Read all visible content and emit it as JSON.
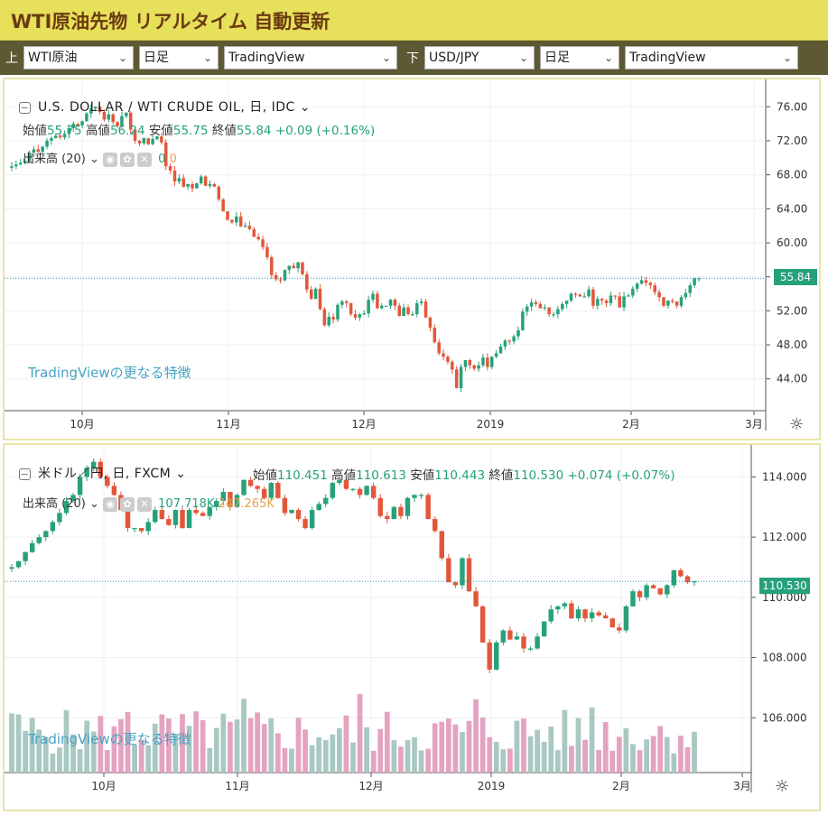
{
  "header": {
    "title": "WTI原油先物 リアルタイム 自動更新"
  },
  "toolbar": {
    "top_label": "上",
    "bottom_label": "下",
    "top_symbol": "WTI原油",
    "top_interval": "日足",
    "top_source": "TradingView",
    "bottom_symbol": "USD/JPY",
    "bottom_interval": "日足",
    "bottom_source": "TradingView"
  },
  "top_chart": {
    "symbol_title": "U.S. DOLLAR / WTI CRUDE OIL, 日, IDC",
    "ohlc": {
      "open_label": "始値",
      "open": "55.75",
      "high_label": "高値",
      "high": "56.24",
      "low_label": "安値",
      "low": "55.75",
      "close_label": "終値",
      "close": "55.84",
      "change": "+0.09 (+0.16%)"
    },
    "volume_label": "出来高 (20)",
    "volume_values": [
      "0",
      "0"
    ],
    "tv_link": "TradingViewの更なる特徴",
    "last_price": "55.84"
  },
  "bottom_chart": {
    "symbol_title": "米ドル／円, 日, FXCM",
    "ohlc": {
      "open_label": "始値",
      "open": "110.451",
      "high_label": "高値",
      "high": "110.613",
      "low_label": "安値",
      "low": "110.443",
      "close_label": "終値",
      "close": "110.530",
      "change": "+0.074 (+0.07%)"
    },
    "volume_label": "出来高 (20)",
    "volume_values": [
      "107.718K",
      "247.265K"
    ],
    "tv_link": "TradingViewの更なる特徴",
    "last_price": "110.530"
  },
  "chart_data": [
    {
      "type": "candlestick",
      "title": "U.S. DOLLAR / WTI CRUDE OIL, 日, IDC",
      "ylim": [
        41,
        79
      ],
      "yticks": [
        "76.00",
        "72.00",
        "68.00",
        "64.00",
        "60.00",
        "56.00",
        "52.00",
        "48.00",
        "44.00"
      ],
      "xticks": [
        "10月",
        "11月",
        "12月",
        "2019",
        "2月",
        "3月"
      ],
      "last": 55.84,
      "closes": [
        69.0,
        69.2,
        69.4,
        69.6,
        70.6,
        71.0,
        70.7,
        71.3,
        72.0,
        72.3,
        72.6,
        72.4,
        72.8,
        73.5,
        74.0,
        73.8,
        74.3,
        75.2,
        75.8,
        76.0,
        75.4,
        74.5,
        75.1,
        74.2,
        73.7,
        74.9,
        75.3,
        73.3,
        72.0,
        71.7,
        72.3,
        71.6,
        72.2,
        72.5,
        71.8,
        69.0,
        68.5,
        67.2,
        67.6,
        66.6,
        66.9,
        66.4,
        67.0,
        67.8,
        66.7,
        66.9,
        66.6,
        65.1,
        63.7,
        62.7,
        62.4,
        63.1,
        61.9,
        62.0,
        61.6,
        60.7,
        60.4,
        59.5,
        58.3,
        56.2,
        55.7,
        55.6,
        56.8,
        57.3,
        57.0,
        57.7,
        56.3,
        54.5,
        53.4,
        54.6,
        52.2,
        50.3,
        51.3,
        51.0,
        52.7,
        53.1,
        52.9,
        51.6,
        51.2,
        51.6,
        51.7,
        53.3,
        54.0,
        52.3,
        52.6,
        52.6,
        53.3,
        52.6,
        51.4,
        52.4,
        51.6,
        51.6,
        52.9,
        53.1,
        51.2,
        50.0,
        48.3,
        47.0,
        46.6,
        46.0,
        45.1,
        42.9,
        45.4,
        46.2,
        45.6,
        45.2,
        45.6,
        46.5,
        45.4,
        46.6,
        47.0,
        47.8,
        48.5,
        48.4,
        49.0,
        49.7,
        51.9,
        52.5,
        53.0,
        52.8,
        52.3,
        52.4,
        51.6,
        51.6,
        52.2,
        52.8,
        53.2,
        54.0,
        53.9,
        53.7,
        53.7,
        54.5,
        52.6,
        53.4,
        53.2,
        52.9,
        53.8,
        53.7,
        52.4,
        53.7,
        53.8,
        54.6,
        55.2,
        55.6,
        55.3,
        55.0,
        54.2,
        53.6,
        52.6,
        53.2,
        53.1,
        52.6,
        53.6,
        54.1,
        55.0,
        55.8,
        55.84
      ]
    },
    {
      "type": "candlestick",
      "title": "米ドル／円, 日, FXCM",
      "ylim": [
        104.0,
        115.0
      ],
      "yticks": [
        "114.000",
        "112.000",
        "110.000",
        "108.000",
        "106.000"
      ],
      "xticks": [
        "10月",
        "11月",
        "12月",
        "2019",
        "2月",
        "3月"
      ],
      "last": 110.53,
      "closes": [
        111.0,
        111.2,
        111.5,
        111.8,
        112.0,
        112.2,
        112.5,
        112.8,
        113.2,
        113.4,
        114.0,
        114.3,
        114.5,
        114.0,
        113.7,
        113.4,
        112.9,
        112.3,
        112.3,
        112.2,
        112.5,
        112.9,
        112.6,
        112.4,
        112.9,
        112.3,
        112.9,
        112.8,
        112.7,
        113.0,
        113.2,
        113.5,
        113.0,
        113.4,
        113.9,
        113.7,
        113.6,
        113.3,
        113.8,
        113.3,
        112.8,
        112.9,
        112.6,
        112.3,
        112.9,
        113.1,
        113.3,
        113.8,
        113.9,
        113.6,
        113.6,
        113.4,
        113.7,
        113.3,
        112.7,
        112.6,
        113.0,
        112.7,
        113.3,
        113.4,
        113.4,
        112.6,
        112.2,
        111.3,
        110.5,
        110.4,
        111.3,
        110.2,
        109.7,
        108.5,
        107.6,
        108.5,
        108.9,
        108.6,
        108.7,
        108.3,
        108.3,
        108.7,
        109.2,
        109.6,
        109.7,
        109.8,
        109.3,
        109.6,
        109.3,
        109.5,
        109.4,
        109.3,
        109.0,
        108.9,
        109.7,
        110.2,
        110.0,
        110.4,
        110.3,
        110.1,
        110.4,
        110.9,
        110.7,
        110.5,
        110.53
      ],
      "volume_series_count": 2
    }
  ]
}
